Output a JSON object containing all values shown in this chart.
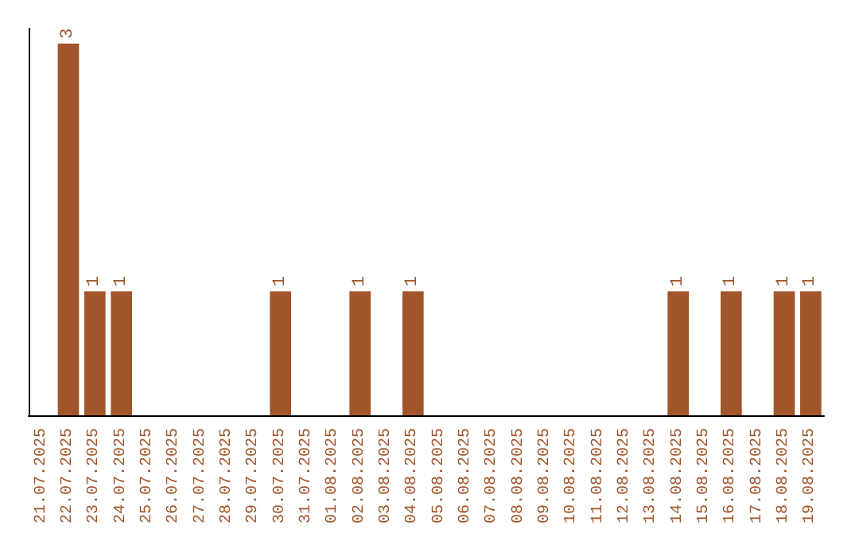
{
  "chart_data": {
    "type": "bar",
    "categories": [
      "21.07.2025",
      "22.07.2025",
      "23.07.2025",
      "24.07.2025",
      "25.07.2025",
      "26.07.2025",
      "27.07.2025",
      "28.07.2025",
      "29.07.2025",
      "30.07.2025",
      "31.07.2025",
      "01.08.2025",
      "02.08.2025",
      "03.08.2025",
      "04.08.2025",
      "05.08.2025",
      "06.08.2025",
      "07.08.2025",
      "08.08.2025",
      "09.08.2025",
      "10.08.2025",
      "11.08.2025",
      "12.08.2025",
      "13.08.2025",
      "14.08.2025",
      "15.08.2025",
      "16.08.2025",
      "17.08.2025",
      "18.08.2025",
      "19.08.2025"
    ],
    "values": [
      0,
      3,
      1,
      1,
      0,
      0,
      0,
      0,
      0,
      1,
      0,
      0,
      1,
      0,
      1,
      0,
      0,
      0,
      0,
      0,
      0,
      0,
      0,
      0,
      1,
      0,
      1,
      0,
      1,
      1
    ],
    "value_labels": [
      null,
      "3",
      "1",
      "1",
      null,
      null,
      null,
      null,
      null,
      "1",
      null,
      null,
      "1",
      null,
      "1",
      null,
      null,
      null,
      null,
      null,
      null,
      null,
      null,
      null,
      "1",
      null,
      "1",
      null,
      "1",
      "1"
    ],
    "color": "#a0562a",
    "grid": false
  }
}
